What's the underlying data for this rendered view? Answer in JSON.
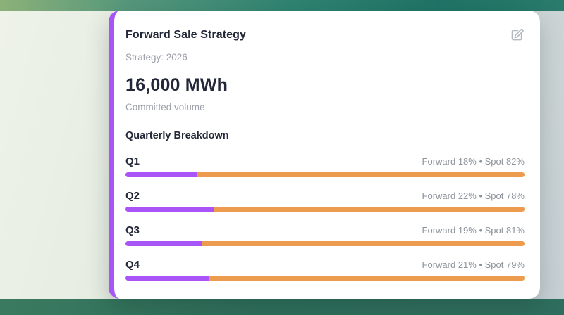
{
  "card": {
    "title": "Forward Sale Strategy",
    "subtitle": "Strategy: 2026",
    "stat_value": "16,000 MWh",
    "stat_caption": "Committed volume",
    "section_title": "Quarterly Breakdown",
    "edit_icon": "edit-pencil-square-icon"
  },
  "quarters": [
    {
      "label": "Q1",
      "detail": "Forward 18% • Spot 82%",
      "forward_pct": 18,
      "spot_pct": 82
    },
    {
      "label": "Q2",
      "detail": "Forward 22% • Spot 78%",
      "forward_pct": 22,
      "spot_pct": 78
    },
    {
      "label": "Q3",
      "detail": "Forward 19% • Spot 81%",
      "forward_pct": 19,
      "spot_pct": 81
    },
    {
      "label": "Q4",
      "detail": "Forward 21% • Spot 79%",
      "forward_pct": 21,
      "spot_pct": 79
    }
  ],
  "chart_data": {
    "type": "bar",
    "subtype": "horizontal-stacked-100pct",
    "categories": [
      "Q1",
      "Q2",
      "Q3",
      "Q4"
    ],
    "series": [
      {
        "name": "Forward",
        "values": [
          18,
          22,
          19,
          21
        ]
      },
      {
        "name": "Spot",
        "values": [
          82,
          78,
          81,
          79
        ]
      }
    ],
    "title": "Quarterly Breakdown",
    "xlabel": "",
    "ylabel": "",
    "xlim": [
      0,
      100
    ],
    "legend_position": "none",
    "grid": false
  },
  "colors": {
    "accent_purple": "#a855f7",
    "accent_orange": "#ed9b4f",
    "text_dark": "#232838",
    "text_gray": "#9ba0a8",
    "card_bg": "#ffffff",
    "band_teal_dark": "#1f7466",
    "band_green_light": "#8cb178"
  }
}
